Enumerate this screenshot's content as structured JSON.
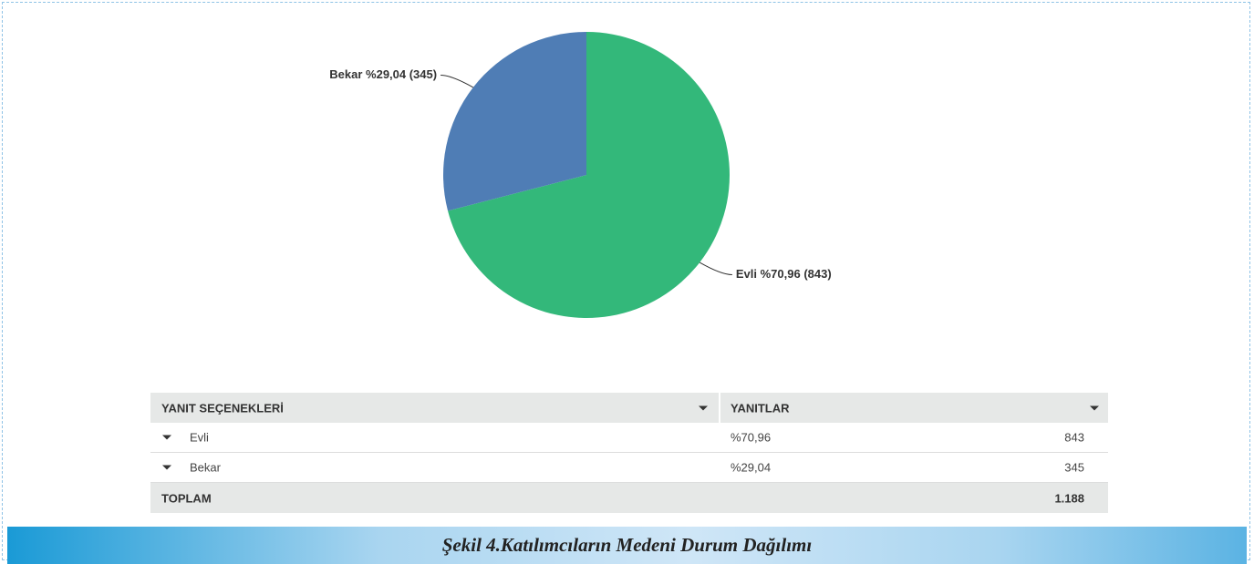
{
  "chart_data": {
    "type": "pie",
    "categories": [
      "Evli",
      "Bekar"
    ],
    "values": [
      70.96,
      29.04
    ],
    "value_labels": [
      "Evli %70,96 (843)",
      "Bekar %29,04 (345)"
    ],
    "colors": [
      "#33b87a",
      "#4f7db5"
    ]
  },
  "table": {
    "headers": [
      "YANIT SEÇENEKLERİ",
      "YANITLAR"
    ],
    "rows": [
      [
        "Evli",
        "%70,96",
        "843"
      ],
      [
        "Bekar",
        "%29,04",
        "345"
      ]
    ],
    "total": [
      "TOPLAM",
      "1.188"
    ]
  },
  "caption": "Şekil 4.Katılımcıların Medeni Durum Dağılımı"
}
